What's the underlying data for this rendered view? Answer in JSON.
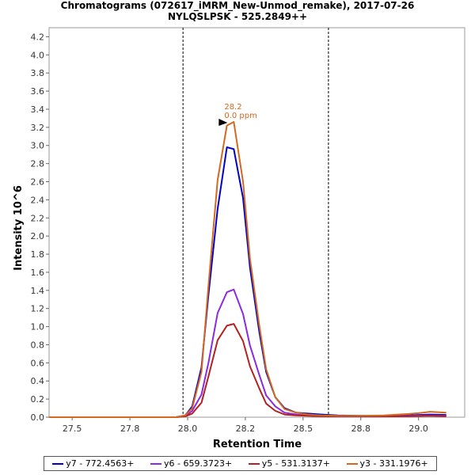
{
  "chart_data": {
    "type": "line",
    "title": "Chromatograms (072617_iMRM_New-Unmod_remake), 2017-07-26",
    "subtitle": "NYLQSLPSK - 525.2849++",
    "xlabel": "Retention Time",
    "ylabel": "Intensity 10^6",
    "xlim": [
      27.4,
      29.2
    ],
    "ylim": [
      0,
      4.3
    ],
    "xticks": [
      "27.5",
      "27.8",
      "28.0",
      "28.2",
      "28.5",
      "28.8",
      "29.0"
    ],
    "xtick_values": [
      27.5,
      27.75,
      28.0,
      28.25,
      28.5,
      28.75,
      29.0
    ],
    "yticks": [
      "0.0",
      "0.2",
      "0.4",
      "0.6",
      "0.8",
      "1.0",
      "1.2",
      "1.4",
      "1.6",
      "1.8",
      "2.0",
      "2.2",
      "2.4",
      "2.6",
      "2.8",
      "3.0",
      "3.2",
      "3.4",
      "3.6",
      "3.8",
      "4.0",
      "4.2"
    ],
    "ytick_values": [
      0,
      0.2,
      0.4,
      0.6,
      0.8,
      1.0,
      1.2,
      1.4,
      1.6,
      1.8,
      2.0,
      2.2,
      2.4,
      2.6,
      2.8,
      3.0,
      3.2,
      3.4,
      3.6,
      3.8,
      4.0,
      4.2
    ],
    "boundaries": [
      27.98,
      28.61
    ],
    "peak_annotation": {
      "x": 28.2,
      "y": 3.26,
      "line1": "28.2",
      "line2": "0.0 ppm"
    },
    "legend_position": "bottom",
    "series": [
      {
        "name": "y7 - 772.4563+",
        "color": "#0000cc",
        "x": [
          27.4,
          27.5,
          27.6,
          27.7,
          27.8,
          27.9,
          27.95,
          27.99,
          28.02,
          28.06,
          28.09,
          28.13,
          28.17,
          28.2,
          28.24,
          28.27,
          28.31,
          28.34,
          28.38,
          28.42,
          28.47,
          28.52,
          28.58,
          28.65,
          28.75,
          28.85,
          28.95,
          29.05,
          29.12
        ],
        "y": [
          0.0,
          0.0,
          0.0,
          0.0,
          0.0,
          0.0,
          0.0,
          0.02,
          0.12,
          0.55,
          1.35,
          2.3,
          2.98,
          2.96,
          2.42,
          1.65,
          0.95,
          0.5,
          0.22,
          0.1,
          0.05,
          0.04,
          0.03,
          0.02,
          0.015,
          0.015,
          0.02,
          0.03,
          0.025
        ]
      },
      {
        "name": "y6 - 659.3723+",
        "color": "#8a2be2",
        "x": [
          27.4,
          27.5,
          27.6,
          27.7,
          27.8,
          27.9,
          27.95,
          27.99,
          28.02,
          28.06,
          28.09,
          28.13,
          28.17,
          28.2,
          28.24,
          28.27,
          28.31,
          28.34,
          28.38,
          28.42,
          28.47,
          28.52,
          28.58,
          28.65,
          28.75,
          28.85,
          28.95,
          29.05,
          29.12
        ],
        "y": [
          0.0,
          0.0,
          0.0,
          0.0,
          0.0,
          0.0,
          0.0,
          0.01,
          0.07,
          0.25,
          0.6,
          1.15,
          1.38,
          1.41,
          1.14,
          0.79,
          0.47,
          0.24,
          0.12,
          0.05,
          0.03,
          0.02,
          0.015,
          0.01,
          0.01,
          0.01,
          0.015,
          0.02,
          0.015
        ]
      },
      {
        "name": "y5 - 531.3137+",
        "color": "#b22222",
        "x": [
          27.4,
          27.5,
          27.6,
          27.7,
          27.8,
          27.9,
          27.95,
          27.99,
          28.02,
          28.06,
          28.09,
          28.13,
          28.17,
          28.2,
          28.24,
          28.27,
          28.31,
          28.34,
          28.38,
          28.42,
          28.47,
          28.52,
          28.58,
          28.65,
          28.75,
          28.85,
          28.95,
          29.05,
          29.12
        ],
        "y": [
          0.0,
          0.0,
          0.0,
          0.0,
          0.0,
          0.0,
          0.0,
          0.01,
          0.04,
          0.16,
          0.45,
          0.85,
          1.01,
          1.03,
          0.84,
          0.56,
          0.32,
          0.15,
          0.07,
          0.03,
          0.02,
          0.015,
          0.01,
          0.01,
          0.01,
          0.01,
          0.01,
          0.015,
          0.01
        ]
      },
      {
        "name": "y3 - 331.1976+",
        "color": "#d2691e",
        "x": [
          27.4,
          27.5,
          27.6,
          27.7,
          27.8,
          27.9,
          27.95,
          27.99,
          28.02,
          28.06,
          28.09,
          28.13,
          28.17,
          28.2,
          28.24,
          28.27,
          28.31,
          28.34,
          28.38,
          28.42,
          28.47,
          28.52,
          28.58,
          28.65,
          28.75,
          28.85,
          28.95,
          29.0,
          29.05,
          29.12
        ],
        "y": [
          0.0,
          0.0,
          0.0,
          0.0,
          0.0,
          0.0,
          0.0,
          0.02,
          0.1,
          0.5,
          1.45,
          2.62,
          3.22,
          3.26,
          2.6,
          1.75,
          1.02,
          0.53,
          0.22,
          0.09,
          0.05,
          0.03,
          0.02,
          0.015,
          0.015,
          0.02,
          0.035,
          0.045,
          0.06,
          0.05
        ]
      }
    ]
  }
}
